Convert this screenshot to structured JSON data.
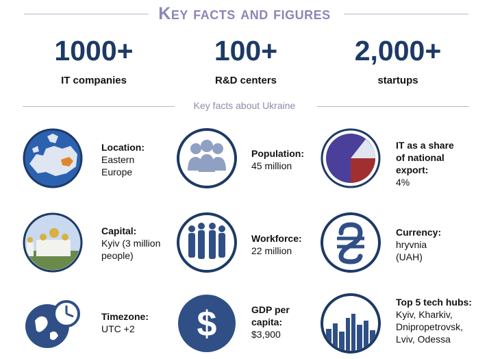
{
  "header": {
    "title": "Key facts and figures"
  },
  "stats": [
    {
      "value": "1000+",
      "label": "IT companies"
    },
    {
      "value": "100+",
      "label": "R&D centers"
    },
    {
      "value": "2,000+",
      "label": "startups"
    }
  ],
  "subtitle": "Key facts about Ukraine",
  "facts": {
    "location": {
      "label": "Location:",
      "value": "Eastern Europe",
      "line1": "Eastern",
      "line2": "Europe"
    },
    "population": {
      "label": "Population:",
      "value": "45 million"
    },
    "it_export": {
      "label_line1": "IT as a share",
      "label_line2": "of national",
      "label_line3": "export:",
      "value": "4%"
    },
    "capital": {
      "label": "Capital:",
      "line1": "Kyiv (3 million",
      "line2": "people)"
    },
    "workforce": {
      "label": "Workforce:",
      "value": "22 million"
    },
    "currency": {
      "label": "Currency:",
      "line1": "hryvnia",
      "line2": "(UAH)"
    },
    "timezone": {
      "label": "Timezone:",
      "value": "UTC +2"
    },
    "gdp": {
      "label_line1": "GDP per",
      "label_line2": "capita:",
      "value": "$3,900"
    },
    "hubs": {
      "label": "Top 5 tech hubs:",
      "line1": "Kyiv, Kharkiv,",
      "line2": "Dnipropetrovsk,",
      "line3": "Lviv, Odessa"
    }
  },
  "colors": {
    "navy": "#1d3a66",
    "title": "#8a86b8",
    "icon_fill": "#2f4f86",
    "highlight": "#e0862a"
  }
}
